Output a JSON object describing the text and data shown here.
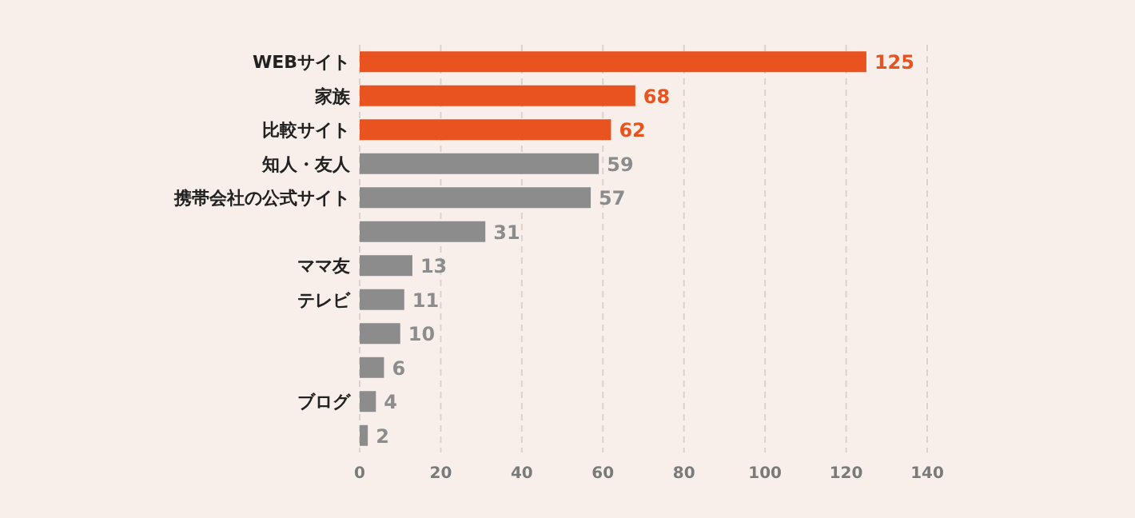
{
  "chart_data": {
    "type": "bar",
    "orientation": "horizontal",
    "categories": [
      "WEBサイト",
      "家族",
      "比較サイト",
      "知人・友人",
      "携帯会社の公式サイト",
      null,
      "ママ友",
      "テレビ",
      null,
      null,
      "ブログ",
      null
    ],
    "values": [
      125,
      68,
      62,
      59,
      57,
      31,
      13,
      11,
      10,
      6,
      4,
      2
    ],
    "colors": [
      "#e8531f",
      "#e8531f",
      "#e8531f",
      "#8c8c8c",
      "#8c8c8c",
      "#8c8c8c",
      "#8c8c8c",
      "#8c8c8c",
      "#8c8c8c",
      "#8c8c8c",
      "#8c8c8c",
      "#8c8c8c"
    ],
    "xlim": [
      0,
      140
    ],
    "xticks": [
      0,
      20,
      40,
      60,
      80,
      100,
      120,
      140
    ],
    "grid": "x",
    "data_labels": true
  }
}
